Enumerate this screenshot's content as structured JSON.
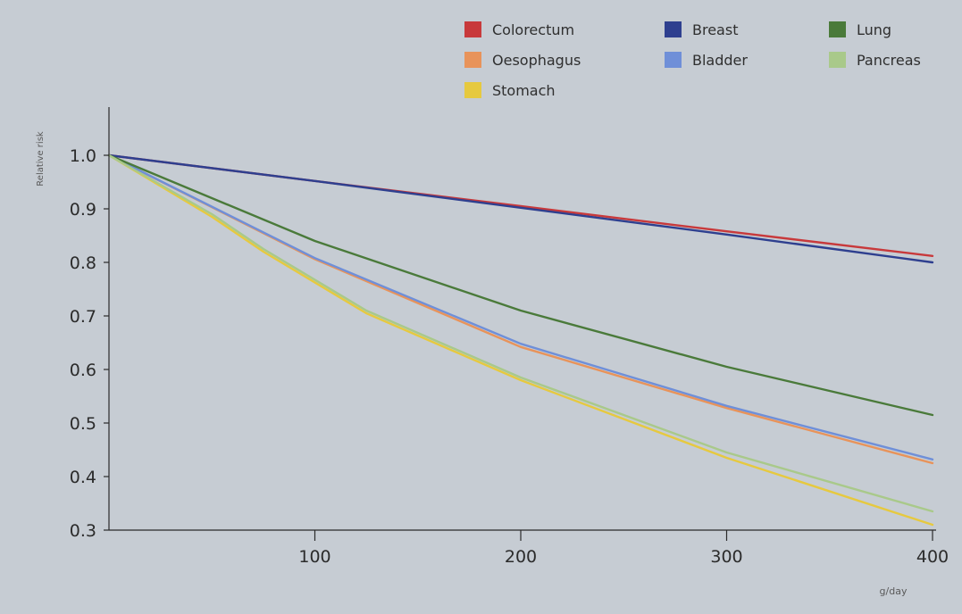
{
  "chart_data": {
    "type": "line",
    "ylabel": "Relative risk",
    "xlabel": "g/day",
    "xlim": [
      0,
      400
    ],
    "ylim": [
      0.3,
      1.0
    ],
    "x_ticks": [
      "100",
      "200",
      "300",
      "400"
    ],
    "y_ticks": [
      "0.3",
      "0.4",
      "0.5",
      "0.6",
      "0.7",
      "0.8",
      "0.9",
      "1.0"
    ],
    "legend": {
      "placement": "top-right",
      "columns": 3
    },
    "grid": false,
    "series": [
      {
        "name": "Colorectum",
        "color": "#c8393b",
        "x": [
          0,
          100,
          200,
          300,
          400
        ],
        "y": [
          1.0,
          0.952,
          0.905,
          0.858,
          0.812
        ]
      },
      {
        "name": "Oesophagus",
        "color": "#e8935a",
        "x": [
          0,
          100,
          200,
          300,
          400
        ],
        "y": [
          1.0,
          0.806,
          0.642,
          0.528,
          0.425
        ]
      },
      {
        "name": "Stomach",
        "color": "#e6c93f",
        "x": [
          0,
          50,
          75,
          125,
          200,
          300,
          400
        ],
        "y": [
          1.0,
          0.885,
          0.82,
          0.705,
          0.58,
          0.435,
          0.31
        ]
      },
      {
        "name": "Breast",
        "color": "#2e3f8f",
        "x": [
          0,
          100,
          200,
          300,
          400
        ],
        "y": [
          1.0,
          0.952,
          0.902,
          0.852,
          0.8
        ]
      },
      {
        "name": "Bladder",
        "color": "#6f8fd8",
        "x": [
          0,
          100,
          200,
          300,
          400
        ],
        "y": [
          1.0,
          0.808,
          0.648,
          0.532,
          0.432
        ]
      },
      {
        "name": "Lung",
        "color": "#4a7a3a",
        "x": [
          0,
          100,
          200,
          300,
          400
        ],
        "y": [
          1.0,
          0.84,
          0.71,
          0.605,
          0.515
        ]
      },
      {
        "name": "Pancreas",
        "color": "#a9c98a",
        "x": [
          0,
          50,
          75,
          125,
          200,
          300,
          400
        ],
        "y": [
          1.0,
          0.89,
          0.825,
          0.71,
          0.585,
          0.445,
          0.335
        ]
      }
    ]
  }
}
